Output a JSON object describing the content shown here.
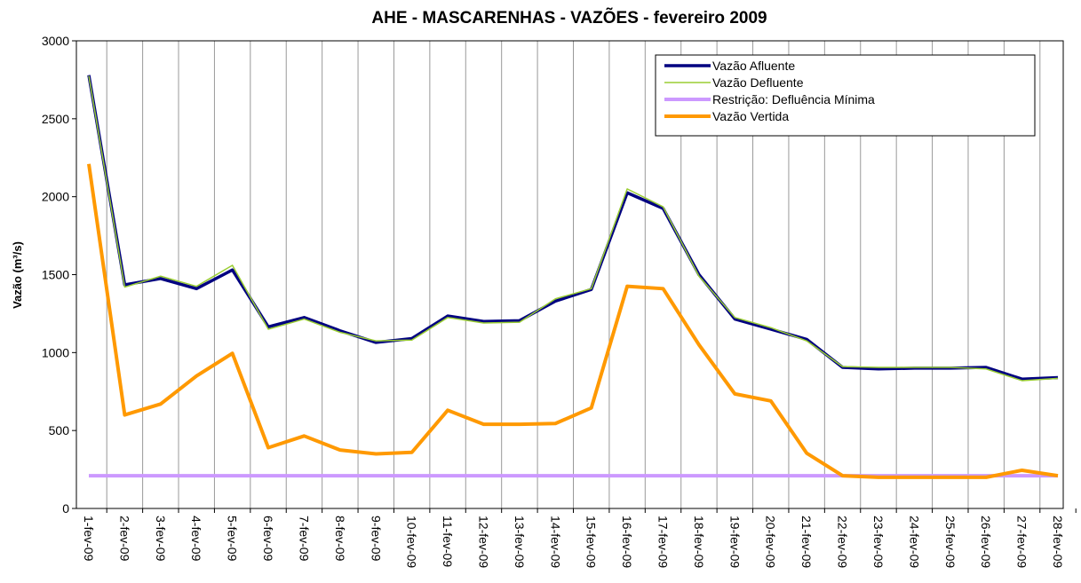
{
  "chart_data": {
    "type": "line",
    "title": "AHE - MASCARENHAS - VAZÕES - fevereiro 2009",
    "y_label": "Vazão (m³/s)",
    "categories": [
      "1-fev-09",
      "2-fev-09",
      "3-fev-09",
      "4-fev-09",
      "5-fev-09",
      "6-fev-09",
      "7-fev-09",
      "8-fev-09",
      "9-fev-09",
      "10-fev-09",
      "11-fev-09",
      "12-fev-09",
      "13-fev-09",
      "14-fev-09",
      "15-fev-09",
      "16-fev-09",
      "17-fev-09",
      "18-fev-09",
      "19-fev-09",
      "20-fev-09",
      "21-fev-09",
      "22-fev-09",
      "23-fev-09",
      "24-fev-09",
      "25-fev-09",
      "26-fev-09",
      "27-fev-09",
      "28-fev-09"
    ],
    "series": [
      {
        "name": "Vazão Afluente",
        "color": "#000080",
        "width": 3.5,
        "values": [
          2780,
          1435,
          1475,
          1410,
          1530,
          1165,
          1225,
          1140,
          1065,
          1090,
          1235,
          1200,
          1205,
          1330,
          1405,
          2025,
          1925,
          1500,
          1215,
          1150,
          1085,
          905,
          895,
          900,
          900,
          905,
          830,
          840
        ]
      },
      {
        "name": "Vazão Defluente",
        "color": "#9acd32",
        "width": 1.5,
        "values": [
          2775,
          1420,
          1490,
          1425,
          1560,
          1150,
          1215,
          1130,
          1075,
          1080,
          1225,
          1190,
          1195,
          1345,
          1410,
          2050,
          1935,
          1490,
          1225,
          1160,
          1075,
          910,
          905,
          905,
          905,
          895,
          820,
          835
        ]
      },
      {
        "name": "Restrição: Defluência Mínima",
        "color": "#cc99ff",
        "width": 4,
        "values": [
          210,
          210,
          210,
          210,
          210,
          210,
          210,
          210,
          210,
          210,
          210,
          210,
          210,
          210,
          210,
          210,
          210,
          210,
          210,
          210,
          210,
          210,
          210,
          210,
          210,
          210,
          210,
          210
        ]
      },
      {
        "name": "Vazão Vertida",
        "color": "#ff9900",
        "width": 4,
        "values": [
          2210,
          600,
          670,
          850,
          995,
          390,
          465,
          375,
          350,
          360,
          630,
          540,
          540,
          545,
          645,
          1425,
          1410,
          1050,
          735,
          690,
          355,
          210,
          200,
          200,
          200,
          200,
          245,
          210
        ]
      }
    ],
    "ylim": [
      0,
      3000
    ],
    "yticks": [
      0,
      500,
      1000,
      1500,
      2000,
      2500,
      3000
    ],
    "grid": true
  }
}
